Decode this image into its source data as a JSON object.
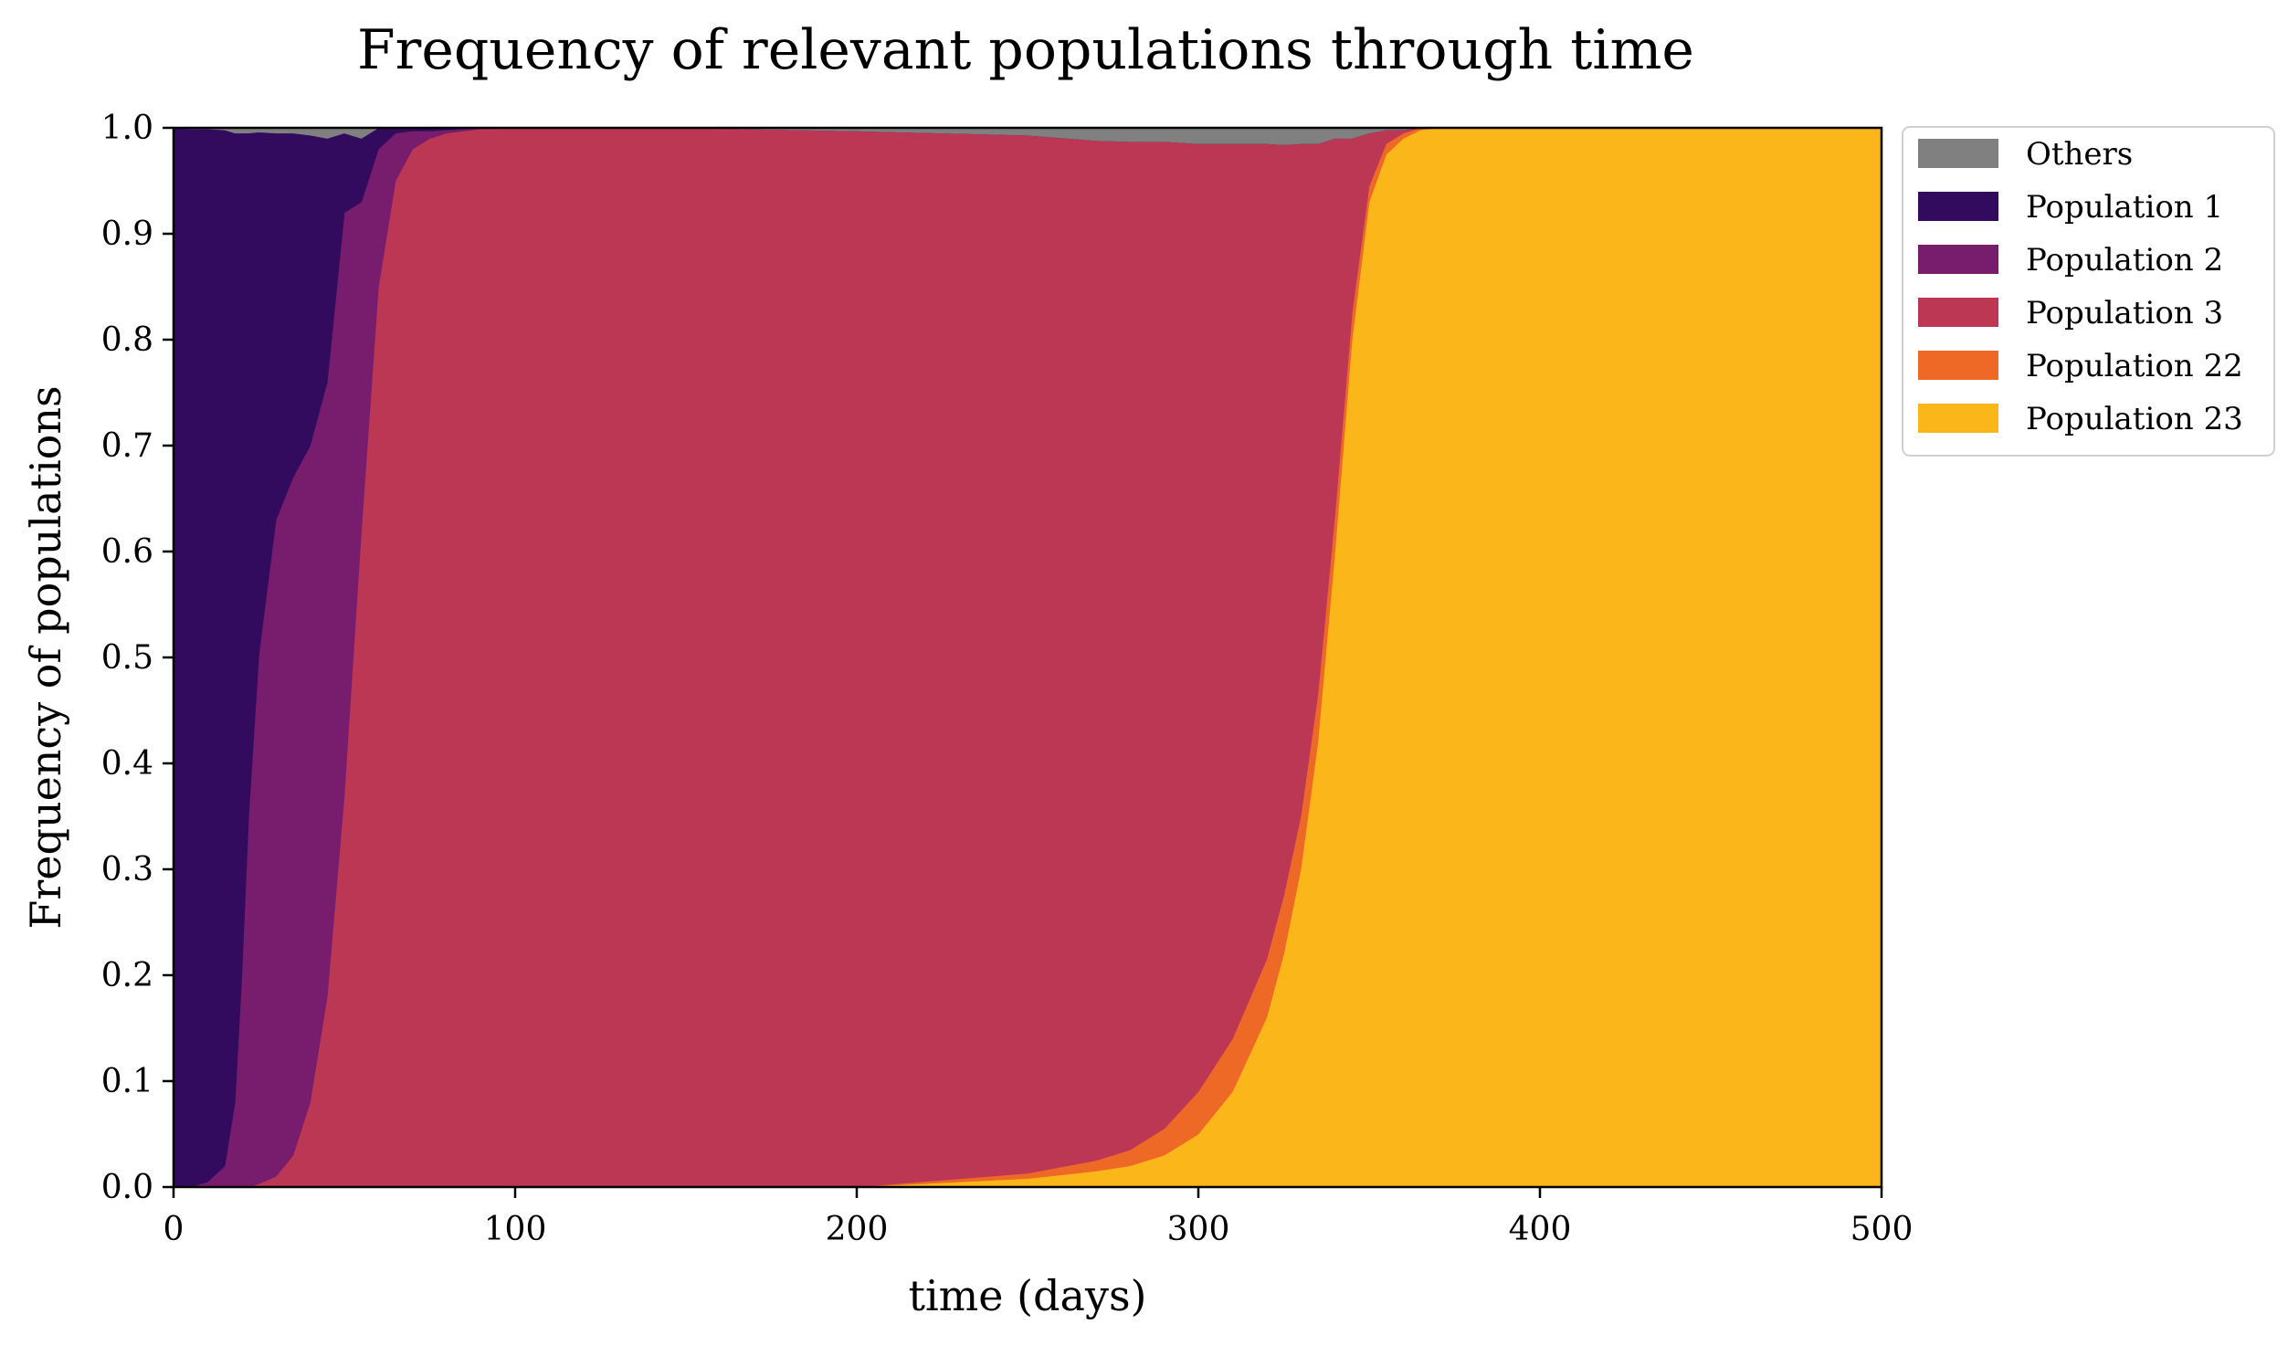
{
  "chart_data": {
    "type": "area",
    "stacked": true,
    "title": "Frequency of relevant populations through time",
    "xlabel": "time (days)",
    "ylabel": "Frequency of populations",
    "xlim": [
      0,
      500
    ],
    "ylim": [
      0,
      1
    ],
    "xticks": [
      "0",
      "100",
      "200",
      "300",
      "400",
      "500"
    ],
    "yticks": [
      "0.0",
      "0.1",
      "0.2",
      "0.3",
      "0.4",
      "0.5",
      "0.6",
      "0.7",
      "0.8",
      "0.9",
      "1.0"
    ],
    "grid": false,
    "legend_position": "outside-top-right",
    "x": [
      0,
      5,
      10,
      15,
      18,
      20,
      22,
      25,
      30,
      35,
      40,
      45,
      50,
      55,
      60,
      65,
      70,
      75,
      80,
      90,
      100,
      150,
      200,
      250,
      270,
      280,
      290,
      300,
      310,
      320,
      325,
      330,
      335,
      340,
      345,
      350,
      355,
      360,
      365,
      370,
      380,
      400,
      450,
      500
    ],
    "series": [
      {
        "name": "Population 23",
        "color": "#fbb61a",
        "values": [
          0,
          0,
          0,
          0,
          0,
          0,
          0,
          0,
          0,
          0,
          0,
          0,
          0,
          0,
          0,
          0,
          0,
          0,
          0,
          0,
          0,
          0,
          0,
          0.008,
          0.015,
          0.02,
          0.03,
          0.05,
          0.09,
          0.16,
          0.22,
          0.3,
          0.42,
          0.6,
          0.8,
          0.93,
          0.975,
          0.99,
          0.998,
          1.0,
          1.0,
          1.0,
          1.0,
          1.0
        ]
      },
      {
        "name": "Population 22",
        "color": "#ed6925",
        "values": [
          0,
          0,
          0,
          0,
          0,
          0,
          0,
          0,
          0,
          0,
          0,
          0,
          0,
          0,
          0,
          0,
          0,
          0,
          0,
          0,
          0,
          0,
          0,
          0.005,
          0.01,
          0.015,
          0.025,
          0.04,
          0.05,
          0.055,
          0.055,
          0.05,
          0.045,
          0.035,
          0.025,
          0.015,
          0.01,
          0.005,
          0.002,
          0,
          0,
          0,
          0,
          0
        ]
      },
      {
        "name": "Population 3",
        "color": "#bb3754",
        "values": [
          0,
          0,
          0,
          0,
          0,
          0,
          0,
          0.003,
          0.01,
          0.03,
          0.08,
          0.18,
          0.37,
          0.62,
          0.85,
          0.95,
          0.98,
          0.99,
          0.995,
          0.999,
          1.0,
          1.0,
          0.997,
          0.98,
          0.963,
          0.952,
          0.932,
          0.895,
          0.845,
          0.77,
          0.709,
          0.635,
          0.52,
          0.355,
          0.165,
          0.05,
          0.013,
          0.003,
          0,
          0,
          0,
          0,
          0,
          0
        ]
      },
      {
        "name": "Population 2",
        "color": "#781c6d",
        "values": [
          0,
          0,
          0.005,
          0.02,
          0.08,
          0.2,
          0.35,
          0.5,
          0.62,
          0.64,
          0.62,
          0.58,
          0.55,
          0.31,
          0.13,
          0.045,
          0.017,
          0.007,
          0.003,
          0.001,
          0,
          0,
          0,
          0,
          0,
          0,
          0,
          0,
          0,
          0,
          0,
          0,
          0,
          0,
          0,
          0,
          0,
          0,
          0,
          0,
          0,
          0,
          0,
          0
        ]
      },
      {
        "name": "Population 1",
        "color": "#320a5e",
        "values": [
          1.0,
          0.999,
          0.994,
          0.978,
          0.915,
          0.795,
          0.645,
          0.493,
          0.365,
          0.325,
          0.293,
          0.23,
          0.075,
          0.06,
          0.02,
          0.005,
          0.003,
          0.003,
          0.002,
          0,
          0,
          0,
          0,
          0,
          0,
          0,
          0,
          0,
          0,
          0,
          0,
          0,
          0,
          0,
          0,
          0,
          0,
          0,
          0,
          0,
          0,
          0,
          0,
          0
        ]
      },
      {
        "name": "Others",
        "color": "#808080",
        "values": [
          0,
          0.001,
          0.001,
          0.002,
          0.005,
          0.005,
          0.005,
          0.004,
          0.005,
          0.005,
          0.007,
          0.01,
          0.005,
          0.01,
          0,
          0,
          0,
          0,
          0,
          0,
          0,
          0,
          0.003,
          0.007,
          0.012,
          0.013,
          0.013,
          0.015,
          0.015,
          0.015,
          0.016,
          0.015,
          0.015,
          0.01,
          0.01,
          0.005,
          0.002,
          0.002,
          0,
          0,
          0,
          0,
          0,
          0
        ]
      }
    ],
    "legend_order": [
      "Others",
      "Population 1",
      "Population 2",
      "Population 3",
      "Population 22",
      "Population 23"
    ]
  }
}
